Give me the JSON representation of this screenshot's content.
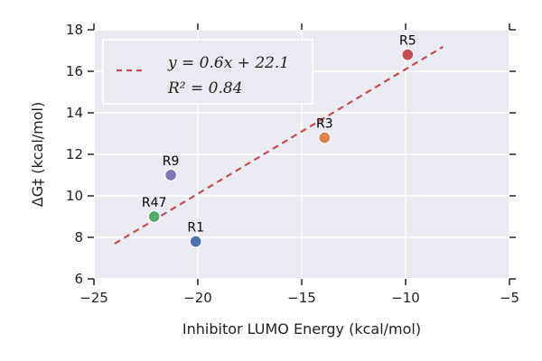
{
  "chart_data": {
    "type": "scatter",
    "xlabel": "Inhibitor LUMO Energy (kcal/mol)",
    "ylabel": "ΔG‡ (kcal/mol)",
    "xlim": [
      -25,
      -5
    ],
    "ylim": [
      6,
      18
    ],
    "xticks": [
      -25,
      -20,
      -15,
      -10,
      -5
    ],
    "yticks": [
      6,
      8,
      10,
      12,
      14,
      16,
      18
    ],
    "grid": true,
    "legend_position": "top-left",
    "background_color": "#eaeaf2",
    "points": [
      {
        "label": "R1",
        "x": -20.1,
        "y": 7.8,
        "color": "#4c72b0"
      },
      {
        "label": "R47",
        "x": -22.1,
        "y": 9.0,
        "color": "#55a868"
      },
      {
        "label": "R9",
        "x": -21.3,
        "y": 11.0,
        "color": "#8172b2"
      },
      {
        "label": "R3",
        "x": -13.9,
        "y": 12.8,
        "color": "#dd8452"
      },
      {
        "label": "R5",
        "x": -9.9,
        "y": 16.8,
        "color": "#c44e52"
      }
    ],
    "fit": {
      "slope": 0.6,
      "intercept": 22.1,
      "x_range": [
        -24,
        -8.2
      ],
      "color": "#c44e52",
      "legend_line1": "y = 0.6x + 22.1",
      "legend_line2": "R² = 0.84"
    }
  }
}
